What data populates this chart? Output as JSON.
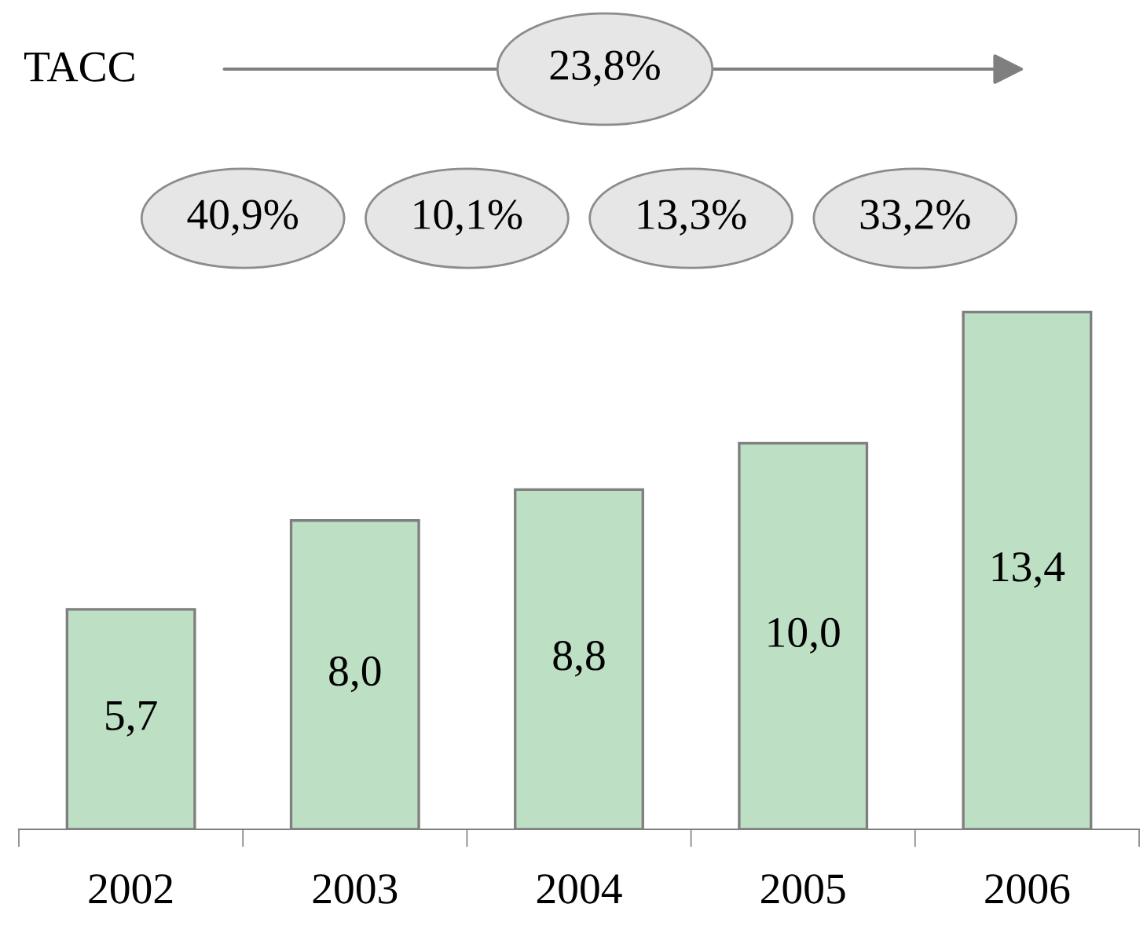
{
  "chart_data": {
    "type": "bar",
    "categories": [
      "2002",
      "2003",
      "2004",
      "2005",
      "2006"
    ],
    "values": [
      5.7,
      8.0,
      8.8,
      10.0,
      13.4
    ],
    "value_labels": [
      "5,7",
      "8,0",
      "8,8",
      "10,0",
      "13,4"
    ],
    "color": "#bddfc3",
    "annotations": [
      "TACC",
      "23,8%",
      "40,9%",
      "10,1%",
      "13,3%",
      "33,2%"
    ],
    "grid": false,
    "legend": false
  }
}
